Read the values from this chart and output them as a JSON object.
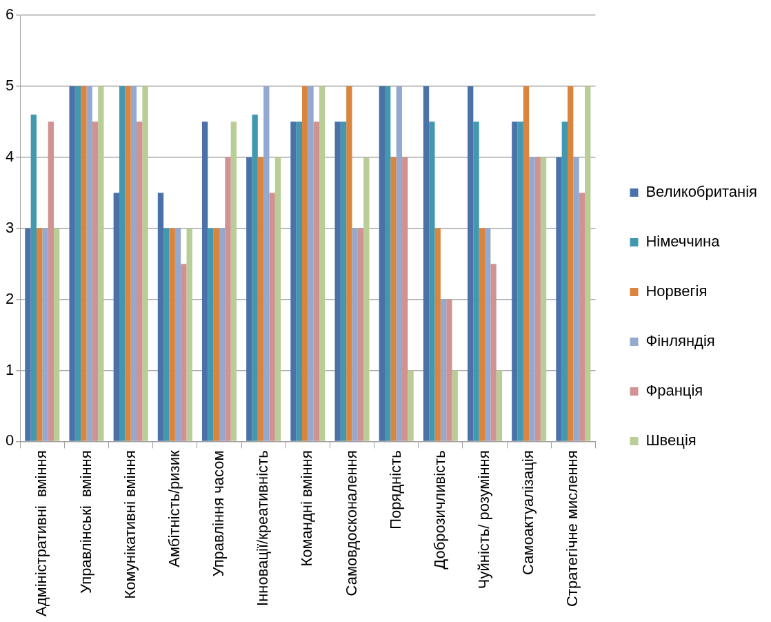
{
  "chart_data": {
    "type": "bar",
    "categories": [
      "Адміністративні  вміння",
      "Управлінські  вміння",
      "Комунікативні вміння",
      "Амбітність/ризик",
      "Управління часом",
      "Інновації/креативність",
      "Командні вміння",
      "Самовдосконалення",
      "Порядність",
      "Доброзичливість",
      "Чуйність/ розуміння",
      "Самоактуалізація",
      "Стратегічне мислення"
    ],
    "series": [
      {
        "name": "Великобританія",
        "color": "#4a72a8",
        "values": [
          3,
          5,
          3.5,
          3.5,
          4.5,
          4,
          4.5,
          4.5,
          5,
          5,
          5,
          4.5,
          4
        ]
      },
      {
        "name": "Німеччина",
        "color": "#4198af",
        "values": [
          4.6,
          5,
          5,
          3,
          3,
          4.6,
          4.5,
          4.5,
          5,
          4.5,
          4.5,
          4.5,
          4.5
        ]
      },
      {
        "name": "Норвегія",
        "color": "#db843d",
        "values": [
          3,
          5,
          5,
          3,
          3,
          4,
          5,
          5,
          4,
          3,
          3,
          5,
          5
        ]
      },
      {
        "name": "Фінляндія",
        "color": "#93a9cf",
        "values": [
          3,
          5,
          5,
          3,
          3,
          5,
          5,
          3,
          5,
          2,
          3,
          4,
          4
        ]
      },
      {
        "name": "Франція",
        "color": "#d19392",
        "values": [
          4.5,
          4.5,
          4.5,
          2.5,
          4,
          3.5,
          4.5,
          3,
          4,
          2,
          2.5,
          4,
          3.5
        ]
      },
      {
        "name": "Швеція",
        "color": "#b9cd96",
        "values": [
          3,
          5,
          5,
          3,
          4.5,
          4,
          5,
          4,
          1,
          1,
          1,
          4,
          5
        ]
      }
    ],
    "ylim": [
      0,
      6
    ],
    "yticks": [
      0,
      1,
      2,
      3,
      4,
      5,
      6
    ],
    "grid": "y",
    "legend": "right"
  }
}
